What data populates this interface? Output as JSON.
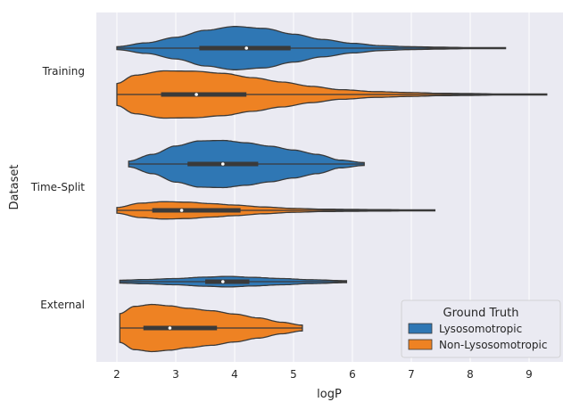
{
  "chart_data": {
    "type": "violin",
    "orientation": "horizontal",
    "xlabel": "logP",
    "ylabel": "Dataset",
    "xlim": [
      1.6,
      9.6
    ],
    "xticks": [
      "2",
      "3",
      "4",
      "5",
      "6",
      "7",
      "8",
      "9"
    ],
    "categories": [
      "Training",
      "Time-Split",
      "External"
    ],
    "grid": true,
    "legend": {
      "title": "Ground Truth",
      "placement": "lower-right",
      "entries": [
        "Lysosomotropic",
        "Non-Lysosomotropic"
      ]
    },
    "colors": {
      "Lysosomotropic": "#2f77b4",
      "Non-Lysosomotropic": "#ee8223",
      "background": "#eaeaf2",
      "grid": "#ffffff"
    },
    "violins": [
      {
        "category": "Training",
        "group": "Lysosomotropic",
        "min": 2.0,
        "max": 8.6,
        "q1": 3.4,
        "median": 4.2,
        "q3": 4.95,
        "density": [
          [
            2.0,
            0.06
          ],
          [
            2.5,
            0.22
          ],
          [
            3.0,
            0.45
          ],
          [
            3.5,
            0.74
          ],
          [
            4.0,
            0.9
          ],
          [
            4.5,
            0.82
          ],
          [
            5.0,
            0.58
          ],
          [
            5.5,
            0.36
          ],
          [
            6.0,
            0.2
          ],
          [
            6.5,
            0.1
          ],
          [
            7.0,
            0.06
          ],
          [
            7.5,
            0.04
          ],
          [
            8.0,
            0.02
          ],
          [
            8.6,
            0.01
          ]
        ]
      },
      {
        "category": "Training",
        "group": "Non-Lysosomotropic",
        "min": 2.0,
        "max": 9.3,
        "q1": 2.75,
        "median": 3.35,
        "q3": 4.2,
        "density": [
          [
            2.0,
            0.45
          ],
          [
            2.3,
            0.8
          ],
          [
            2.8,
            0.98
          ],
          [
            3.3,
            0.97
          ],
          [
            3.8,
            0.88
          ],
          [
            4.3,
            0.7
          ],
          [
            4.8,
            0.52
          ],
          [
            5.3,
            0.34
          ],
          [
            5.8,
            0.2
          ],
          [
            6.4,
            0.12
          ],
          [
            7.0,
            0.08
          ],
          [
            7.5,
            0.05
          ],
          [
            8.0,
            0.04
          ],
          [
            8.5,
            0.02
          ],
          [
            9.3,
            0.005
          ]
        ]
      },
      {
        "category": "Time-Split",
        "group": "Lysosomotropic",
        "min": 2.2,
        "max": 6.2,
        "q1": 3.2,
        "median": 3.8,
        "q3": 4.4,
        "density": [
          [
            2.2,
            0.12
          ],
          [
            2.6,
            0.4
          ],
          [
            3.0,
            0.75
          ],
          [
            3.4,
            0.96
          ],
          [
            3.8,
            0.98
          ],
          [
            4.2,
            0.88
          ],
          [
            4.6,
            0.74
          ],
          [
            5.0,
            0.58
          ],
          [
            5.4,
            0.4
          ],
          [
            5.8,
            0.16
          ],
          [
            6.2,
            0.06
          ]
        ]
      },
      {
        "category": "Time-Split",
        "group": "Non-Lysosomotropic",
        "min": 2.0,
        "max": 7.4,
        "q1": 2.6,
        "median": 3.1,
        "q3": 4.1,
        "density": [
          [
            2.0,
            0.12
          ],
          [
            2.4,
            0.3
          ],
          [
            2.8,
            0.36
          ],
          [
            3.2,
            0.34
          ],
          [
            3.6,
            0.28
          ],
          [
            4.0,
            0.22
          ],
          [
            4.5,
            0.14
          ],
          [
            5.0,
            0.08
          ],
          [
            5.5,
            0.05
          ],
          [
            6.0,
            0.04
          ],
          [
            6.5,
            0.03
          ],
          [
            7.0,
            0.02
          ],
          [
            7.4,
            0.01
          ]
        ]
      },
      {
        "category": "External",
        "group": "Lysosomotropic",
        "min": 2.05,
        "max": 5.9,
        "q1": 3.5,
        "median": 3.8,
        "q3": 4.25,
        "density": [
          [
            2.05,
            0.06
          ],
          [
            2.5,
            0.09
          ],
          [
            3.0,
            0.13
          ],
          [
            3.5,
            0.19
          ],
          [
            3.9,
            0.22
          ],
          [
            4.3,
            0.18
          ],
          [
            4.8,
            0.13
          ],
          [
            5.3,
            0.08
          ],
          [
            5.9,
            0.04
          ]
        ]
      },
      {
        "category": "External",
        "group": "Non-Lysosomotropic",
        "min": 2.05,
        "max": 5.15,
        "q1": 2.45,
        "median": 2.9,
        "q3": 3.7,
        "density": [
          [
            2.05,
            0.6
          ],
          [
            2.3,
            0.9
          ],
          [
            2.6,
            0.98
          ],
          [
            2.9,
            0.92
          ],
          [
            3.2,
            0.82
          ],
          [
            3.6,
            0.72
          ],
          [
            4.0,
            0.58
          ],
          [
            4.4,
            0.42
          ],
          [
            4.8,
            0.24
          ],
          [
            5.15,
            0.12
          ]
        ]
      }
    ]
  }
}
